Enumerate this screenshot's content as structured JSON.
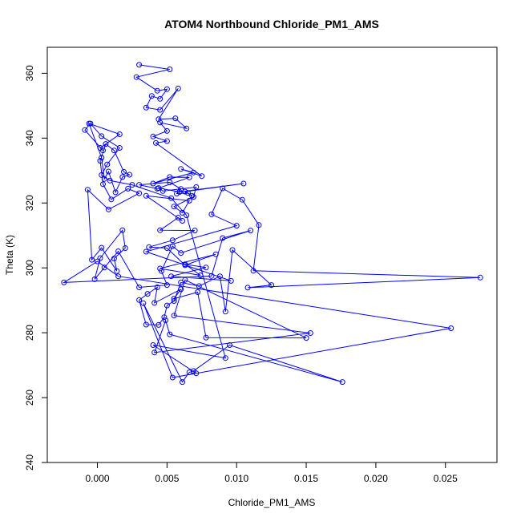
{
  "chart_data": {
    "type": "line",
    "title": "ATOM4 Northbound Chloride_PM1_AMS",
    "xlabel": "Chloride_PM1_AMS",
    "ylabel": "Theta (K)",
    "xlim": [
      -0.0036,
      0.0287
    ],
    "ylim": [
      240,
      368
    ],
    "x_ticks": [
      0.0,
      0.005,
      0.01,
      0.015,
      0.02,
      0.025
    ],
    "x_tick_labels": [
      "0.000",
      "0.005",
      "0.010",
      "0.015",
      "0.020",
      "0.025"
    ],
    "y_ticks": [
      240,
      260,
      280,
      300,
      320,
      340,
      360
    ],
    "y_tick_labels": [
      "240",
      "260",
      "280",
      "300",
      "320",
      "340",
      "360"
    ],
    "grid": false,
    "legend": "none",
    "marker": "open-circle",
    "color": "#0000ff",
    "series": [
      {
        "x": [
          0.003,
          0.0052,
          0.0028,
          0.0043,
          0.005,
          0.0045,
          0.0039,
          0.0035,
          0.0045,
          0.0058,
          0.0044,
          0.0056,
          0.0064,
          0.0045,
          0.005,
          0.004,
          0.005,
          0.0042,
          0.0075,
          0.006,
          0.0069,
          0.004,
          0.0052,
          0.0066,
          0.0043,
          0.003,
          0.0052,
          0.006,
          0.0057,
          0.0065,
          0.0068,
          0.0063,
          0.0105,
          0.0059,
          0.0044,
          0.0047,
          0.0071,
          0.0069,
          0.0055,
          0.0061,
          0.0066,
          0.0035,
          0.0061,
          0.0058,
          0.0045,
          0.007,
          0.0054,
          0.0037,
          0.005,
          0.0063,
          0.0085,
          0.0045,
          0.0074,
          0.0063,
          0.0078,
          0.0053,
          0.0096,
          0.0035,
          0.01,
          0.0082,
          0.009,
          0.0104,
          0.0116,
          0.0112,
          0.0275,
          0.0108,
          0.0125,
          0.0097,
          0.0092,
          0.0088,
          0.0073,
          0.006,
          0.0055,
          0.005,
          0.0048,
          0.0044,
          0.0035,
          0.003,
          0.0036,
          0.0043,
          0.0041,
          0.006,
          0.0055,
          0.0072,
          0.0078,
          0.015,
          0.0063,
          0.0055,
          0.0153,
          0.0041,
          0.0049,
          0.0052,
          0.0176,
          0.0095,
          0.0069,
          0.0066,
          0.0061,
          0.0033,
          0.0054,
          0.0254,
          0.0015,
          0.0,
          -0.0024,
          0.0082,
          0.009,
          0.011,
          0.006,
          0.0054,
          0.0046,
          0.005,
          0.003,
          0.0015,
          0.0005,
          -0.0002,
          0.0002,
          0.0018,
          0.002,
          0.0012,
          0.0014,
          0.0003,
          -0.0004,
          -0.0007,
          0.0008,
          0.003,
          0.0022,
          0.001,
          0.0004,
          0.0002,
          0.0006,
          0.0012,
          0.0019,
          0.0023,
          0.0018,
          0.0013,
          0.0008,
          0.0005,
          0.0003,
          -0.0006,
          0.0016,
          0.0002,
          0.0004,
          -0.0009,
          -0.0005,
          0.0003,
          0.0016,
          0.0007,
          0.0003,
          0.0009,
          0.0025,
          0.0053,
          0.0064,
          0.0092,
          0.004,
          0.0071
        ],
        "y": [
          362.6,
          361.2,
          358.8,
          354.6,
          355.1,
          352.1,
          353.0,
          349.4,
          348.7,
          355.3,
          345.8,
          346.1,
          343.0,
          344.8,
          342.2,
          340.5,
          339.1,
          338.5,
          328.3,
          330.5,
          329.4,
          326.0,
          328.0,
          327.9,
          324.4,
          325.6,
          326.4,
          324.3,
          322.9,
          323.1,
          322.2,
          323.5,
          326.0,
          323.4,
          324.6,
          323.7,
          324.9,
          321.9,
          318.9,
          317.0,
          320.7,
          322.2,
          314.5,
          315.5,
          311.6,
          311.5,
          308.5,
          306.4,
          306.1,
          300.8,
          304.2,
          299.8,
          297.7,
          301.1,
          300.1,
          297.4,
          296.0,
          305.0,
          313.0,
          316.5,
          324.5,
          321.0,
          313.2,
          299.1,
          297.0,
          293.9,
          294.7,
          305.5,
          286.5,
          297.4,
          294.4,
          295.5,
          289.8,
          288.4,
          284.8,
          282.4,
          282.5,
          290.1,
          292.0,
          294.0,
          289.2,
          293.4,
          290.5,
          292.5,
          278.5,
          278.4,
          296.3,
          285.3,
          279.9,
          273.9,
          283.8,
          279.5,
          264.8,
          276.2,
          268.2,
          267.8,
          264.8,
          289.1,
          266.2,
          281.4,
          297.4,
          302.0,
          295.5,
          297.5,
          309.2,
          311.5,
          304.6,
          306.7,
          299.0,
          294.7,
          294.0,
          305.1,
          300.1,
          296.5,
          303.0,
          311.6,
          306.1,
          302.9,
          299.0,
          306.2,
          302.5,
          324.1,
          318.0,
          323.0,
          324.4,
          321.1,
          325.8,
          333.0,
          338.2,
          336.2,
          329.6,
          328.7,
          328.0,
          323.3,
          329.7,
          327.4,
          334.0,
          344.5,
          341.2,
          337.0,
          336.2,
          342.5,
          344.5,
          340.6,
          337.0,
          331.9,
          328.6,
          326.9,
          325.6,
          321.5,
          316.2,
          272.2,
          276.2,
          267.5
        ]
      }
    ]
  }
}
